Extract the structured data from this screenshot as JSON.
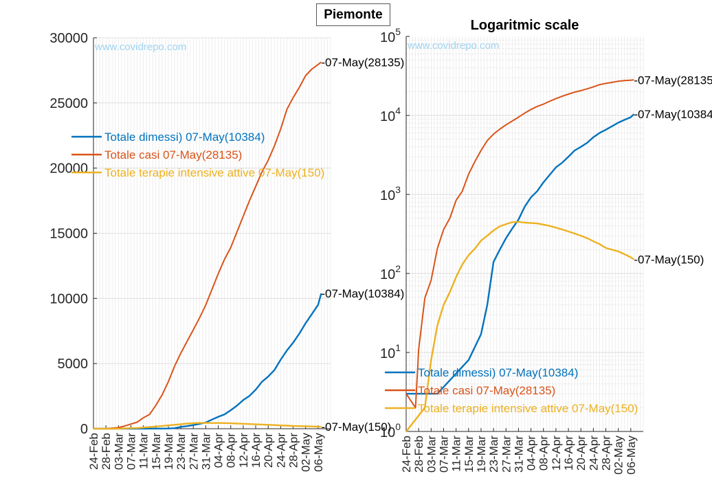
{
  "page_title": "Piemonte",
  "watermark": "www.covidrepo.com",
  "colors": {
    "dimessi": "#0072BD",
    "casi": "#D95319",
    "terapie": "#EDB120",
    "watermark": "#9fd3f0"
  },
  "chart_data": [
    {
      "type": "line",
      "title": "",
      "xlabel": "",
      "ylabel": "",
      "yscale": "linear",
      "ylim": [
        0,
        30000
      ],
      "yticks": [
        0,
        5000,
        10000,
        15000,
        20000,
        25000,
        30000
      ],
      "xlim": [
        "2020-02-24",
        "2020-05-10"
      ],
      "xtick_labels": [
        "24-Feb",
        "28-Feb",
        "03-Mar",
        "07-Mar",
        "11-Mar",
        "15-Mar",
        "19-Mar",
        "23-Mar",
        "27-Mar",
        "31-Mar",
        "04-Apr",
        "08-Apr",
        "12-Apr",
        "16-Apr",
        "20-Apr",
        "24-Apr",
        "28-Apr",
        "02-May",
        "06-May"
      ],
      "grid": true,
      "legend_position": "center-left",
      "legend": [
        "Totale dimessi) 07-May(10384)",
        "Totale casi 07-May(28135)",
        "Totale terapie intensive attive 07-May(150)"
      ],
      "end_labels": [
        "-07-May(28135)",
        "-07-May(10384)",
        "-07-May(150)"
      ],
      "series": [
        {
          "key": "dimessi",
          "x": [
            "2020-02-24",
            "2020-03-05",
            "2020-03-15",
            "2020-03-19",
            "2020-03-21",
            "2020-03-23",
            "2020-03-25",
            "2020-03-27",
            "2020-03-29",
            "2020-03-31",
            "2020-04-02",
            "2020-04-04",
            "2020-04-06",
            "2020-04-08",
            "2020-04-10",
            "2020-04-12",
            "2020-04-14",
            "2020-04-16",
            "2020-04-18",
            "2020-04-20",
            "2020-04-22",
            "2020-04-24",
            "2020-04-26",
            "2020-04-28",
            "2020-04-30",
            "2020-05-02",
            "2020-05-04",
            "2020-05-06",
            "2020-05-07"
          ],
          "values": [
            3,
            3,
            8,
            17,
            40,
            140,
            200,
            280,
            370,
            480,
            700,
            920,
            1100,
            1420,
            1770,
            2200,
            2520,
            3000,
            3600,
            4000,
            4500,
            5300,
            6000,
            6600,
            7300,
            8100,
            8800,
            9500,
            10384
          ]
        },
        {
          "key": "casi",
          "x": [
            "2020-02-24",
            "2020-02-27",
            "2020-02-28",
            "2020-03-01",
            "2020-03-03",
            "2020-03-05",
            "2020-03-07",
            "2020-03-09",
            "2020-03-11",
            "2020-03-13",
            "2020-03-15",
            "2020-03-17",
            "2020-03-19",
            "2020-03-21",
            "2020-03-23",
            "2020-03-25",
            "2020-03-27",
            "2020-03-29",
            "2020-03-31",
            "2020-04-02",
            "2020-04-04",
            "2020-04-06",
            "2020-04-08",
            "2020-04-10",
            "2020-04-12",
            "2020-04-14",
            "2020-04-16",
            "2020-04-18",
            "2020-04-20",
            "2020-04-22",
            "2020-04-24",
            "2020-04-26",
            "2020-04-28",
            "2020-04-30",
            "2020-05-02",
            "2020-05-04",
            "2020-05-06",
            "2020-05-07"
          ],
          "values": [
            3,
            2,
            11,
            49,
            82,
            207,
            360,
            501,
            840,
            1100,
            1800,
            2600,
            3600,
            4800,
            5800,
            6700,
            7600,
            8500,
            9500,
            10700,
            11900,
            13000,
            13900,
            15100,
            16300,
            17500,
            18600,
            19700,
            20600,
            21700,
            23000,
            24500,
            25400,
            26200,
            27100,
            27600,
            27950,
            28135
          ]
        },
        {
          "key": "terapie",
          "x": [
            "2020-02-24",
            "2020-03-01",
            "2020-03-03",
            "2020-03-05",
            "2020-03-07",
            "2020-03-09",
            "2020-03-11",
            "2020-03-13",
            "2020-03-15",
            "2020-03-17",
            "2020-03-19",
            "2020-03-21",
            "2020-03-23",
            "2020-03-25",
            "2020-03-27",
            "2020-03-29",
            "2020-03-31",
            "2020-04-02",
            "2020-04-04",
            "2020-04-06",
            "2020-04-08",
            "2020-04-10",
            "2020-04-12",
            "2020-04-14",
            "2020-04-16",
            "2020-04-18",
            "2020-04-20",
            "2020-04-22",
            "2020-04-24",
            "2020-04-26",
            "2020-04-28",
            "2020-04-30",
            "2020-05-02",
            "2020-05-04",
            "2020-05-06",
            "2020-05-07"
          ],
          "values": [
            1,
            2,
            8,
            22,
            40,
            58,
            90,
            130,
            170,
            205,
            260,
            300,
            350,
            395,
            420,
            445,
            450,
            440,
            435,
            430,
            415,
            400,
            380,
            360,
            340,
            320,
            300,
            280,
            255,
            235,
            210,
            200,
            190,
            175,
            160,
            150
          ]
        }
      ]
    },
    {
      "type": "line",
      "title": "Logaritmic scale",
      "xlabel": "",
      "ylabel": "",
      "yscale": "log",
      "ylim": [
        1,
        100000
      ],
      "ytick_labels": [
        {
          "base": "10",
          "exp": "0"
        },
        {
          "base": "10",
          "exp": "1"
        },
        {
          "base": "10",
          "exp": "2"
        },
        {
          "base": "10",
          "exp": "3"
        },
        {
          "base": "10",
          "exp": "4"
        },
        {
          "base": "10",
          "exp": "5"
        }
      ],
      "xlim": [
        "2020-02-24",
        "2020-05-10"
      ],
      "xtick_labels": [
        "24-Feb",
        "28-Feb",
        "03-Mar",
        "07-Mar",
        "11-Mar",
        "15-Mar",
        "19-Mar",
        "23-Mar",
        "27-Mar",
        "31-Mar",
        "04-Apr",
        "08-Apr",
        "12-Apr",
        "16-Apr",
        "20-Apr",
        "24-Apr",
        "28-Apr",
        "02-May",
        "06-May"
      ],
      "grid": true,
      "legend_position": "bottom-left",
      "legend": [
        "Totale dimessi) 07-May(10384)",
        "Totale casi 07-May(28135)",
        "Totale terapie intensive attive 07-May(150)"
      ],
      "end_labels": [
        "-07-May(28135",
        "-07-May(10384",
        "-07-May(150)"
      ]
    }
  ]
}
